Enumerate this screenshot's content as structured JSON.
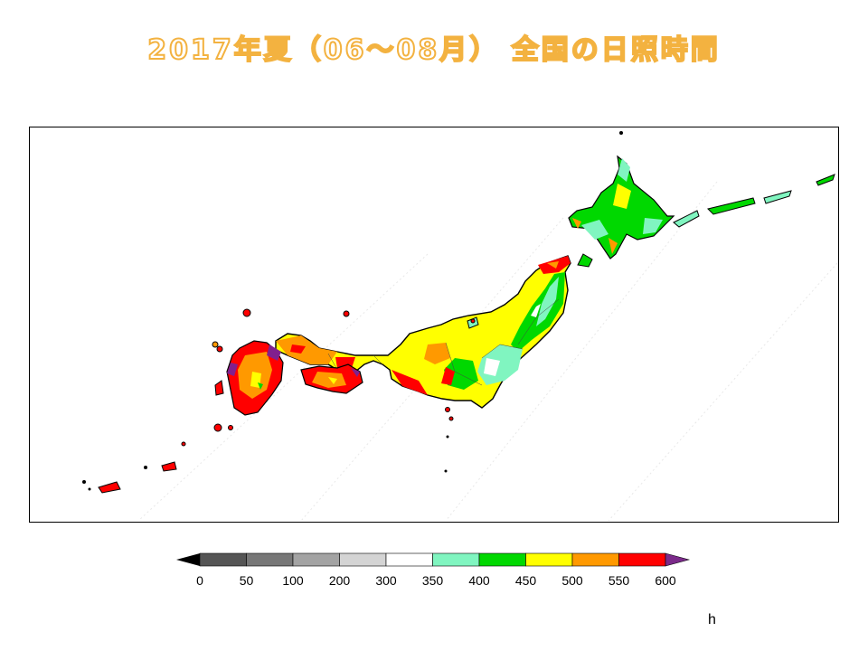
{
  "title": "2017年夏（06～08月） 全国の日照時間",
  "legend": {
    "ticks": [
      "0",
      "50",
      "100",
      "200",
      "300",
      "350",
      "400",
      "450",
      "500",
      "550",
      "600"
    ],
    "colors": [
      "#555555",
      "#777777",
      "#a3a3a3",
      "#d4d4d4",
      "#ffffff",
      "#80f5c0",
      "#00d800",
      "#ffff00",
      "#ff9900",
      "#ff0000",
      "#80208e"
    ],
    "low_arrow_color": "#000000",
    "high_arrow_color": "#7b2a8a",
    "unit": "h"
  },
  "map": {
    "region": "Japan"
  }
}
